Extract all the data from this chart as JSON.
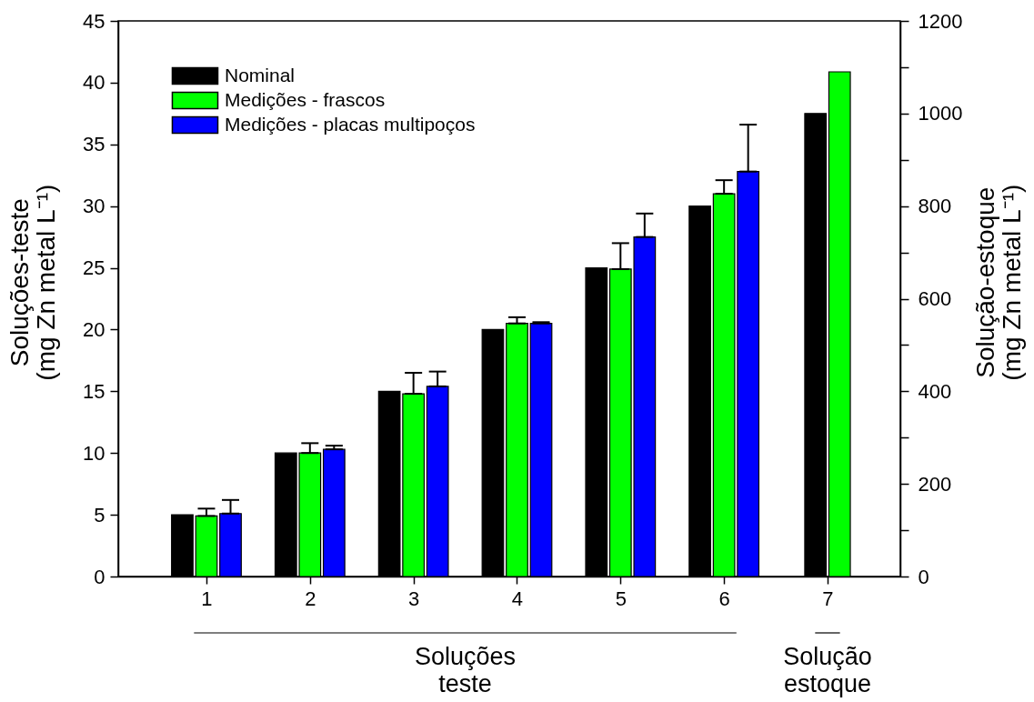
{
  "chart_data": {
    "type": "bar",
    "ylabel": "Soluções-teste\n(mg Zn metal L⁻¹)",
    "y2label": "Solução-estoque\n(mg Zn metal L⁻¹)",
    "categories": [
      "1",
      "2",
      "3",
      "4",
      "5",
      "6",
      "7"
    ],
    "series": [
      {
        "name": "Nominal",
        "color": "#000000",
        "values": [
          5,
          10,
          15,
          20,
          25,
          30,
          null
        ]
      },
      {
        "name": "Medições - frascos",
        "color": "#00ff00",
        "values": [
          4.9,
          10.0,
          14.8,
          20.5,
          24.9,
          31.0,
          null
        ],
        "errors": [
          [
            4.9,
            5.5
          ],
          [
            10.0,
            10.8
          ],
          [
            14.8,
            16.5
          ],
          [
            20.5,
            21.0
          ],
          [
            24.9,
            27.0
          ],
          [
            31.0,
            32.1
          ],
          null
        ]
      },
      {
        "name": "Medições - placas multipoços",
        "color": "#0000ff",
        "values": [
          5.1,
          10.3,
          15.4,
          20.5,
          27.5,
          32.8,
          null
        ],
        "errors": [
          [
            5.1,
            6.2
          ],
          [
            10.3,
            10.6
          ],
          [
            15.4,
            16.6
          ],
          [
            20.5,
            20.6
          ],
          [
            27.5,
            29.4
          ],
          [
            32.8,
            36.6
          ],
          null
        ]
      },
      {
        "color": "#000000",
        "axis": "y2",
        "values": [
          null,
          null,
          null,
          null,
          null,
          null,
          1000
        ]
      },
      {
        "color": "#00ff00",
        "axis": "y2",
        "values": [
          null,
          null,
          null,
          null,
          null,
          null,
          1090
        ]
      }
    ],
    "ylim": [
      0,
      45
    ],
    "yticks": [
      0,
      5,
      10,
      15,
      20,
      25,
      30,
      35,
      40,
      45
    ],
    "y2lim": [
      0,
      1200
    ],
    "y2ticks": [
      0,
      {
        "value": 100,
        "label": null
      },
      200,
      {
        "value": 300,
        "label": null
      },
      400,
      {
        "value": 500,
        "label": null
      },
      600,
      {
        "value": 700,
        "label": null
      },
      800,
      {
        "value": 900,
        "label": null
      },
      1000,
      {
        "value": 1100,
        "label": null
      },
      1200
    ],
    "legend": "top left",
    "annotations": [
      "Soluções\nteste",
      "Solução\nestoque"
    ]
  }
}
